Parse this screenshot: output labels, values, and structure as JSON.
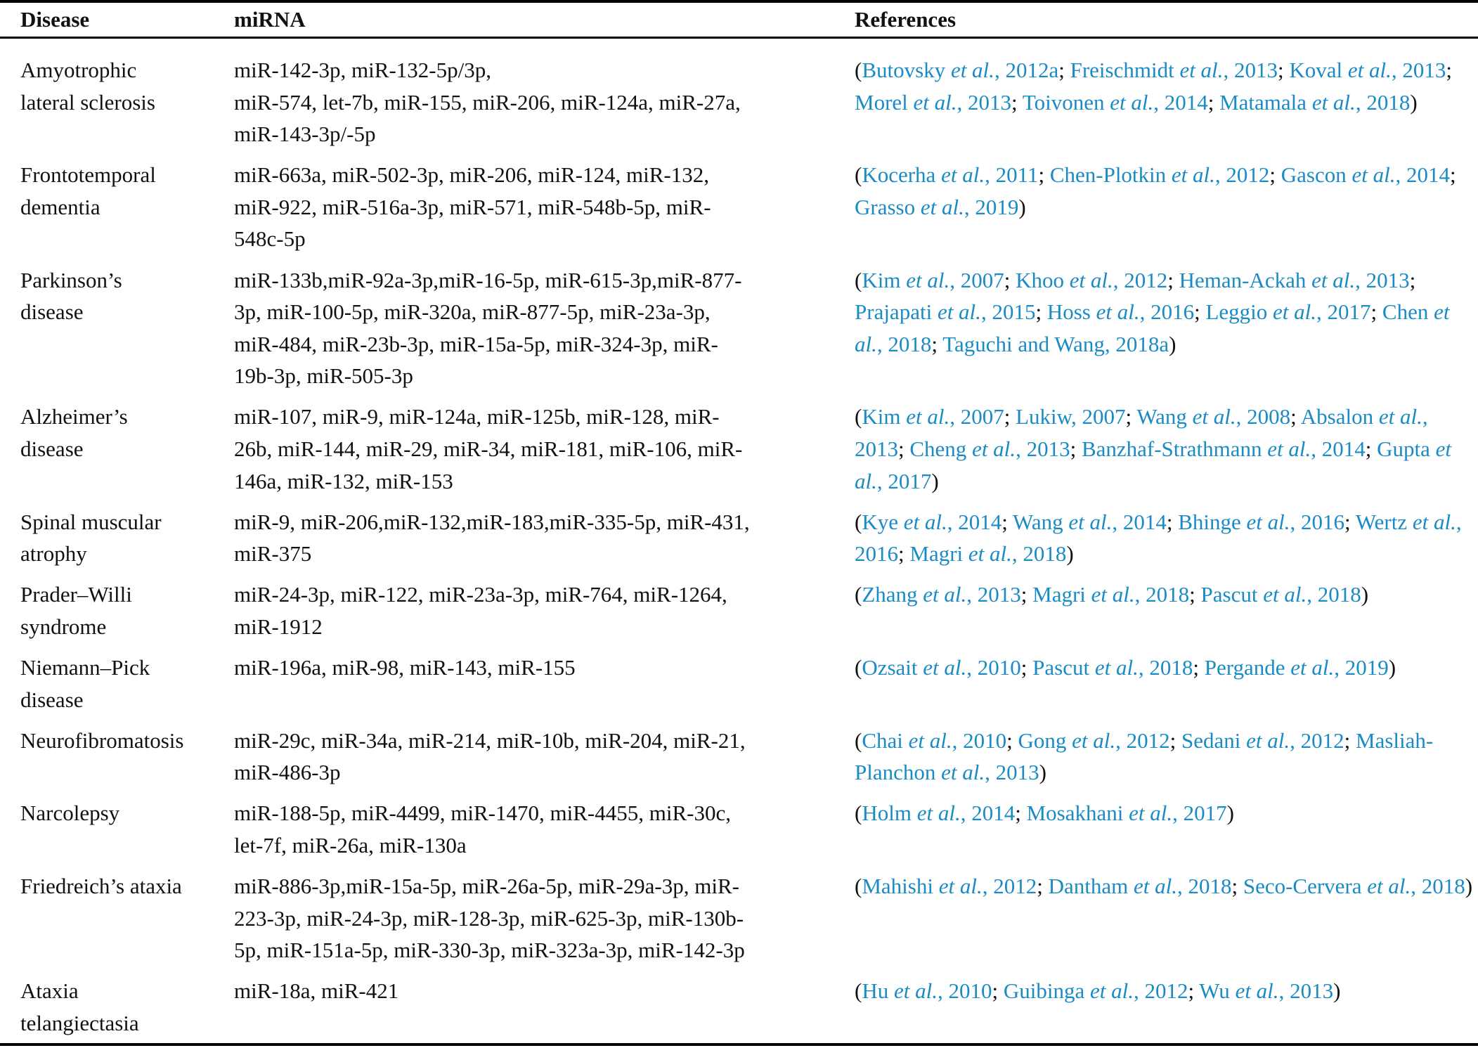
{
  "table": {
    "headers": [
      "Disease",
      "miRNA",
      "References"
    ],
    "link_color": "#1a8bc5",
    "rows": [
      {
        "disease": [
          "Amyotrophic",
          "lateral sclerosis"
        ],
        "mirna": [
          "miR-142-3p, miR-132-5p/3p,",
          "miR-574, let-7b, miR-155, miR-206, miR-124a, miR-27a,",
          "miR-143-3p/-5p"
        ],
        "refs": [
          {
            "author": "Butovsky",
            "etal": true,
            "year": "2012a"
          },
          {
            "author": "Freischmidt",
            "etal": true,
            "year": "2013"
          },
          {
            "author": "Koval",
            "etal": true,
            "year": "2013"
          },
          {
            "author": "Morel",
            "etal": true,
            "year": "2013"
          },
          {
            "author": "Toivonen",
            "etal": true,
            "year": "2014"
          },
          {
            "author": "Matamala",
            "etal": true,
            "year": "2018"
          }
        ]
      },
      {
        "disease": [
          "Frontotemporal",
          "dementia"
        ],
        "mirna": [
          "miR-663a, miR-502-3p, miR-206, miR-124, miR-132,",
          "miR-922, miR-516a-3p, miR-571, miR-548b-5p, miR-",
          "548c-5p"
        ],
        "refs": [
          {
            "author": "Kocerha",
            "etal": true,
            "year": "2011"
          },
          {
            "author": "Chen-Plotkin",
            "etal": true,
            "year": "2012"
          },
          {
            "author": "Gascon",
            "etal": true,
            "year": "2014"
          },
          {
            "author": "Grasso",
            "etal": true,
            "year": "2019"
          }
        ]
      },
      {
        "disease": [
          "Parkinson’s",
          "disease"
        ],
        "mirna": [
          "miR-133b,miR-92a-3p,miR-16-5p, miR-615-3p,miR-877-",
          "3p, miR-100-5p, miR-320a, miR-877-5p, miR-23a-3p,",
          "miR-484, miR-23b-3p, miR-15a-5p, miR-324-3p, miR-",
          "19b-3p, miR-505-3p"
        ],
        "refs": [
          {
            "author": "Kim",
            "etal": true,
            "year": "2007"
          },
          {
            "author": "Khoo",
            "etal": true,
            "year": "2012"
          },
          {
            "author": "Heman-Ackah",
            "etal": true,
            "year": "2013"
          },
          {
            "author": "Prajapati",
            "etal": true,
            "year": "2015"
          },
          {
            "author": "Hoss",
            "etal": true,
            "year": "2016"
          },
          {
            "author": "Leggio",
            "etal": true,
            "year": "2017"
          },
          {
            "author": "Chen",
            "etal": true,
            "year": "2018"
          },
          {
            "author": "Taguchi and Wang",
            "etal": false,
            "year": "2018a"
          }
        ]
      },
      {
        "disease": [
          "Alzheimer’s",
          "disease"
        ],
        "mirna": [
          "miR-107, miR-9, miR-124a, miR-125b, miR-128, miR-",
          "26b, miR-144, miR-29, miR-34, miR-181, miR-106, miR-",
          "146a, miR-132, miR-153"
        ],
        "refs": [
          {
            "author": "Kim",
            "etal": true,
            "year": "2007"
          },
          {
            "author": "Lukiw",
            "etal": false,
            "year": "2007"
          },
          {
            "author": "Wang",
            "etal": true,
            "year": "2008"
          },
          {
            "author": "Absalon",
            "etal": true,
            "year": "2013"
          },
          {
            "author": "Cheng",
            "etal": true,
            "year": "2013"
          },
          {
            "author": "Banzhaf-Strathmann",
            "etal": true,
            "year": "2014"
          },
          {
            "author": "Gupta",
            "etal": true,
            "year": "2017"
          }
        ]
      },
      {
        "disease": [
          "Spinal muscular",
          "atrophy"
        ],
        "mirna": [
          "miR-9, miR-206,miR-132,miR-183,miR-335-5p, miR-431,",
          "miR-375"
        ],
        "refs": [
          {
            "author": "Kye",
            "etal": true,
            "year": "2014"
          },
          {
            "author": "Wang",
            "etal": true,
            "year": "2014"
          },
          {
            "author": "Bhinge",
            "etal": true,
            "year": "2016"
          },
          {
            "author": "Wertz",
            "etal": true,
            "year": "2016"
          },
          {
            "author": "Magri",
            "etal": true,
            "year": "2018"
          }
        ]
      },
      {
        "disease": [
          "Prader–Willi",
          "syndrome"
        ],
        "mirna": [
          "miR-24-3p, miR-122, miR-23a-3p, miR-764, miR-1264,",
          "miR-1912"
        ],
        "refs": [
          {
            "author": "Zhang",
            "etal": true,
            "year": "2013"
          },
          {
            "author": "Magri",
            "etal": true,
            "year": "2018"
          },
          {
            "author": "Pascut",
            "etal": true,
            "year": "2018"
          }
        ]
      },
      {
        "disease": [
          "Niemann–Pick",
          "disease"
        ],
        "mirna": [
          "miR-196a, miR-98, miR-143, miR-155"
        ],
        "refs": [
          {
            "author": "Ozsait",
            "etal": true,
            "year": "2010"
          },
          {
            "author": "Pascut",
            "etal": true,
            "year": "2018"
          },
          {
            "author": "Pergande",
            "etal": true,
            "year": "2019"
          }
        ]
      },
      {
        "disease": [
          "Neurofibromatosis"
        ],
        "mirna": [
          "miR-29c, miR-34a, miR-214, miR-10b, miR-204, miR-21,",
          "miR-486-3p"
        ],
        "refs": [
          {
            "author": "Chai",
            "etal": true,
            "year": "2010"
          },
          {
            "author": "Gong",
            "etal": true,
            "year": "2012"
          },
          {
            "author": "Sedani",
            "etal": true,
            "year": "2012"
          },
          {
            "author": "Masliah-Planchon",
            "etal": true,
            "year": "2013"
          }
        ]
      },
      {
        "disease": [
          "Narcolepsy"
        ],
        "mirna": [
          "miR-188-5p, miR-4499, miR-1470, miR-4455, miR-30c,",
          "let-7f, miR-26a, miR-130a"
        ],
        "refs": [
          {
            "author": "Holm",
            "etal": true,
            "year": "2014"
          },
          {
            "author": "Mosakhani",
            "etal": true,
            "year": "2017"
          }
        ]
      },
      {
        "disease": [
          "Friedreich’s ataxia"
        ],
        "mirna": [
          "miR-886-3p,miR-15a-5p, miR-26a-5p, miR-29a-3p, miR-",
          "223-3p, miR-24-3p, miR-128-3p, miR-625-3p, miR-130b-",
          "5p, miR-151a-5p, miR-330-3p, miR-323a-3p, miR-142-3p"
        ],
        "refs": [
          {
            "author": "Mahishi",
            "etal": true,
            "year": "2012"
          },
          {
            "author": "Dantham",
            "etal": true,
            "year": "2018"
          },
          {
            "author": "Seco-Cervera",
            "etal": true,
            "year": "2018"
          }
        ]
      },
      {
        "disease": [
          "Ataxia",
          "telangiectasia"
        ],
        "mirna": [
          "miR-18a, miR-421"
        ],
        "refs": [
          {
            "author": "Hu",
            "etal": true,
            "year": "2010"
          },
          {
            "author": "Guibinga",
            "etal": true,
            "year": "2012"
          },
          {
            "author": "Wu",
            "etal": true,
            "year": "2013"
          }
        ]
      }
    ],
    "etal_text": "et al."
  }
}
